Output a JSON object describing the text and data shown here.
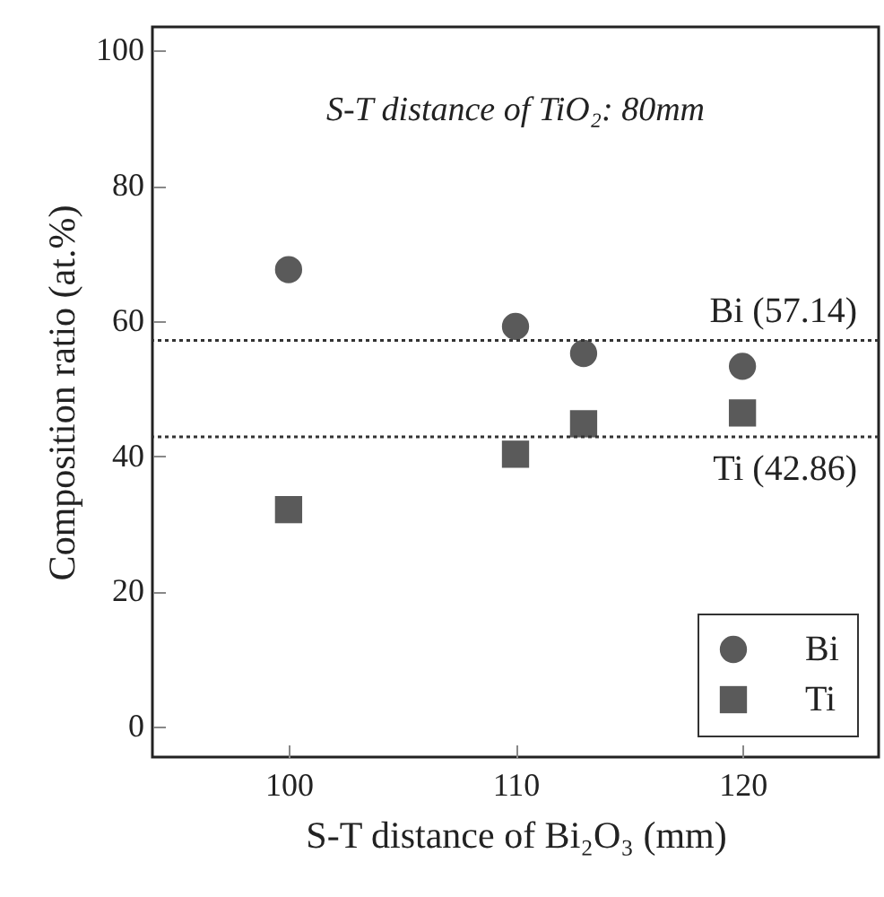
{
  "chart_data": {
    "type": "scatter",
    "xlabel": "S-T distance of Bi₂O₃ (mm)",
    "ylabel": "Composition ratio (at.%)",
    "annotations": [
      "S-T distance of TiO₂: 80mm"
    ],
    "series": [
      {
        "name": "Bi",
        "color": "#5a5a5a",
        "marker": "circle",
        "x": [
          100,
          110,
          113,
          120
        ],
        "values": [
          67.6,
          59.2,
          55.2,
          53.3
        ]
      },
      {
        "name": "Ti",
        "color": "#5a5a5a",
        "marker": "square",
        "x": [
          100,
          110,
          113,
          120
        ],
        "values": [
          32.1,
          40.3,
          44.8,
          46.4
        ]
      }
    ],
    "ref_lines": [
      {
        "axis": "y",
        "value": 57.14,
        "label": "Bi (57.14)",
        "line_style": "dotted",
        "color": "#333333"
      },
      {
        "axis": "y",
        "value": 42.86,
        "label": "Ti (42.86)",
        "line_style": "dotted",
        "color": "#333333"
      }
    ],
    "xlim": [
      94,
      126
    ],
    "xticks": [
      100,
      110,
      120
    ],
    "ylim": [
      -4.5,
      103.5
    ],
    "yticks": [
      0,
      20,
      40,
      60,
      80,
      100
    ],
    "grid": false,
    "legend": "bottom right"
  }
}
